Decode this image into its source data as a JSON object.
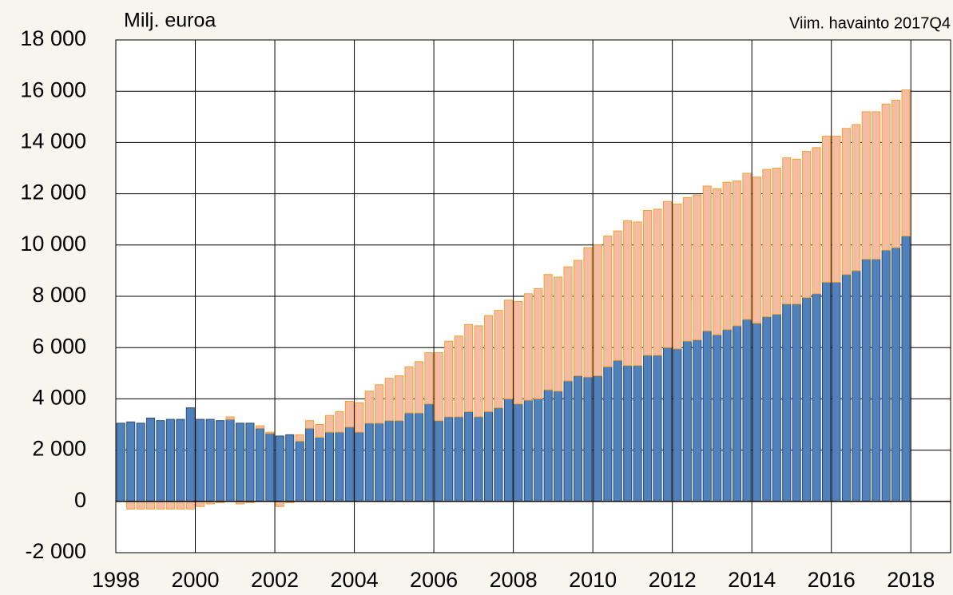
{
  "chart_data": {
    "type": "bar",
    "stacked": true,
    "title": "Milj. euroa",
    "subtitle": "Viim. havainto 2017Q4",
    "x": [
      1998,
      1998.25,
      1998.5,
      1998.75,
      1999,
      1999.25,
      1999.5,
      1999.75,
      2000,
      2000.25,
      2000.5,
      2000.75,
      2001,
      2001.25,
      2001.5,
      2001.75,
      2002,
      2002.25,
      2002.5,
      2002.75,
      2003,
      2003.25,
      2003.5,
      2003.75,
      2004,
      2004.25,
      2004.5,
      2004.75,
      2005,
      2005.25,
      2005.5,
      2005.75,
      2006,
      2006.25,
      2006.5,
      2006.75,
      2007,
      2007.25,
      2007.5,
      2007.75,
      2008,
      2008.25,
      2008.5,
      2008.75,
      2009,
      2009.25,
      2009.5,
      2009.75,
      2010,
      2010.25,
      2010.5,
      2010.75,
      2011,
      2011.25,
      2011.5,
      2011.75,
      2012,
      2012.25,
      2012.5,
      2012.75,
      2013,
      2013.25,
      2013.5,
      2013.75,
      2014,
      2014.25,
      2014.5,
      2014.75,
      2015,
      2015.25,
      2015.5,
      2015.75,
      2016,
      2016.25,
      2016.5,
      2016.75,
      2017,
      2017.25,
      2017.5,
      2017.75
    ],
    "series": [
      {
        "color": "#4f81bd",
        "edge": "#2c4d75",
        "values": [
          3050,
          3100,
          3050,
          3250,
          3150,
          3200,
          3200,
          3650,
          3200,
          3200,
          3150,
          3200,
          3050,
          3050,
          2850,
          2650,
          2550,
          2600,
          2350,
          2850,
          2500,
          2700,
          2700,
          2900,
          2700,
          3050,
          3050,
          3150,
          3150,
          3450,
          3450,
          3800,
          3150,
          3300,
          3300,
          3500,
          3300,
          3500,
          3650,
          4000,
          3800,
          3950,
          4000,
          4350,
          4300,
          4700,
          4900,
          4850,
          4900,
          5250,
          5500,
          5300,
          5300,
          5700,
          5700,
          6000,
          5950,
          6250,
          6300,
          6650,
          6500,
          6700,
          6850,
          7100,
          6950,
          7200,
          7300,
          7700,
          7700,
          7950,
          8100,
          8550,
          8550,
          8850,
          9000,
          9450,
          9450,
          9800,
          9900,
          10350
        ]
      },
      {
        "color": "#f5bca4",
        "edge": "#f5a030",
        "values": [
          0,
          -300,
          -300,
          -300,
          -300,
          -300,
          -300,
          -300,
          -200,
          -100,
          -50,
          100,
          -100,
          -50,
          100,
          50,
          -200,
          -50,
          250,
          300,
          500,
          650,
          800,
          1000,
          1150,
          1250,
          1500,
          1650,
          1750,
          1800,
          2000,
          2000,
          2650,
          2950,
          3150,
          3400,
          3550,
          3750,
          3800,
          3850,
          4000,
          4150,
          4300,
          4500,
          4450,
          4450,
          4500,
          5050,
          5100,
          5100,
          5050,
          5650,
          5600,
          5650,
          5700,
          5700,
          5650,
          5600,
          5650,
          5650,
          5700,
          5750,
          5650,
          5700,
          5700,
          5750,
          5700,
          5700,
          5650,
          5700,
          5700,
          5700,
          5700,
          5700,
          5700,
          5750,
          5750,
          5700,
          5750,
          5700
        ]
      }
    ],
    "xlim": [
      1998,
      2019
    ],
    "xticks": [
      1998,
      2000,
      2002,
      2004,
      2006,
      2008,
      2010,
      2012,
      2014,
      2016,
      2018
    ],
    "ylim": [
      -2000,
      18000
    ],
    "yticks": [
      {
        "value": -2000,
        "label": "-2 000"
      },
      0,
      {
        "value": 2000,
        "label": "2 000"
      },
      {
        "value": 4000,
        "label": "4 000"
      },
      {
        "value": 6000,
        "label": "6 000"
      },
      {
        "value": 8000,
        "label": "8 000"
      },
      {
        "value": 10000,
        "label": "10 000"
      },
      {
        "value": 12000,
        "label": "12 000"
      },
      {
        "value": 14000,
        "label": "14 000"
      },
      {
        "value": 16000,
        "label": "16 000"
      },
      {
        "value": 18000,
        "label": "18 000"
      }
    ],
    "grid": true
  }
}
